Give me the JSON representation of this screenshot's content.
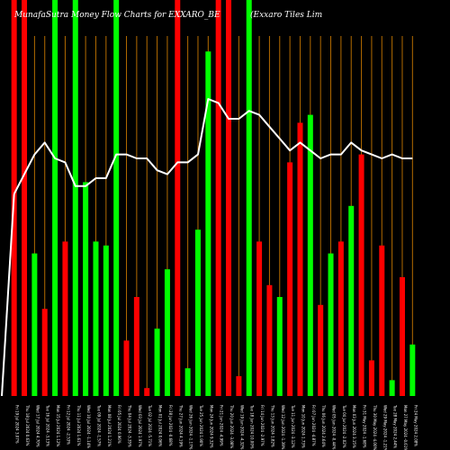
{
  "header": {
    "title_left": "MunafaSutra  Money Flow  Charts for EXXARO_BE",
    "title_right": "(Exxaro  Tiles  Lim"
  },
  "colors": {
    "background": "#000000",
    "up": "#00ff00",
    "down": "#ff0000",
    "grid": "#b36b00",
    "line": "#ffffff",
    "label": "#ffffff"
  },
  "chart_data": {
    "type": "bar",
    "title": "MunafaSutra  Money Flow  Charts for EXXARO_BE",
    "ylim": [
      0,
      100
    ],
    "categories": [
      "Fri 19 Jul 2024 3.07%",
      "Thu 18 Jul 2024 0.63%",
      "Wed 17 Jul 2024 4.70%",
      "Tue 16 Jul 2024 -3.13%",
      "Mon 15 Jul 2024 1.12%",
      "Fri 12 Jul 2024 -2.53%",
      "Thu 11 Jul 2024 1.61%",
      "Wed 10 Jul 2024 -1.14%",
      "Tue 09 Jul 2024 -1.57%",
      "Mon 08 Jul 2024 1.21%",
      "Fri 05 Jul 2024 0.96%",
      "Thu 04 Jul 2024 -3.35%",
      "Wed 03 Jul 2024 1.97%",
      "Tue 02 Jul 2024 -5.71%",
      "Mon 01 Jul 2024 0.06%",
      "Fri 28 Jun 2024 -0.68%",
      "Thu 27 Jun 2024 4.19%",
      "Wed 26 Jun 2024 -1.17%",
      "Tue 25 Jun 2024 1.90%",
      "Mon 24 Jun 2024 9.32%",
      "Fri 21 Jun 2024 -4.99%",
      "Thu 20 Jun 2024 -3.08%",
      "Wed 19 Jun 2024 -4.32%",
      "Tue 18 Jun 2024 10.00%",
      "Fri 14 Jun 2024 -2.97%",
      "Thu 13 Jun 2024 1.82%",
      "Wed 12 Jun 2024 -1.39%",
      "Tue 11 Jun 2024 -3.12%",
      "Mon 10 Jun 2024 1.73%",
      "Fri 07 Jun 2024 -4.87%",
      "Thu 06 Jun 2024 2.64%",
      "Wed 05 Jun 2024 -0.44%",
      "Tue 04 Jun 2024 -2.02%",
      "Mon 03 Jun 2024 3.15%",
      "Fri 31 May 2024 -1.68%",
      "Thu 30 May 2024 -4.00%",
      "Wed 29 May 2024 -1.21%",
      "Tue 28 May 2024 2.44%",
      "Mon 27 May 2024 -0.61%",
      "Fri 24 May 2024 2.08%"
    ],
    "bar_colors": [
      "red",
      "red",
      "green",
      "red",
      "green",
      "red",
      "green",
      "green",
      "green",
      "green",
      "green",
      "red",
      "red",
      "red",
      "green",
      "green",
      "red",
      "green",
      "green",
      "green",
      "red",
      "red",
      "red",
      "green",
      "red",
      "red",
      "green",
      "red",
      "red",
      "green",
      "red",
      "green",
      "red",
      "green",
      "red",
      "red",
      "red",
      "green",
      "red",
      "green"
    ],
    "values": [
      100,
      100,
      36,
      22,
      100,
      39,
      100,
      54,
      39,
      38,
      100,
      14,
      25,
      2,
      17,
      32,
      100,
      7,
      42,
      87,
      100,
      100,
      5,
      100,
      39,
      28,
      25,
      59,
      69,
      71,
      23,
      36,
      39,
      48,
      61,
      9,
      38,
      4,
      30,
      13
    ],
    "line_values": [
      51,
      56,
      61,
      64,
      60,
      59,
      53,
      53,
      55,
      55,
      61,
      61,
      60,
      60,
      57,
      56,
      59,
      59,
      61,
      75,
      74,
      70,
      70,
      72,
      71,
      68,
      65,
      62,
      64,
      62,
      60,
      61,
      61,
      64,
      62,
      61,
      60,
      61,
      60,
      60
    ]
  }
}
